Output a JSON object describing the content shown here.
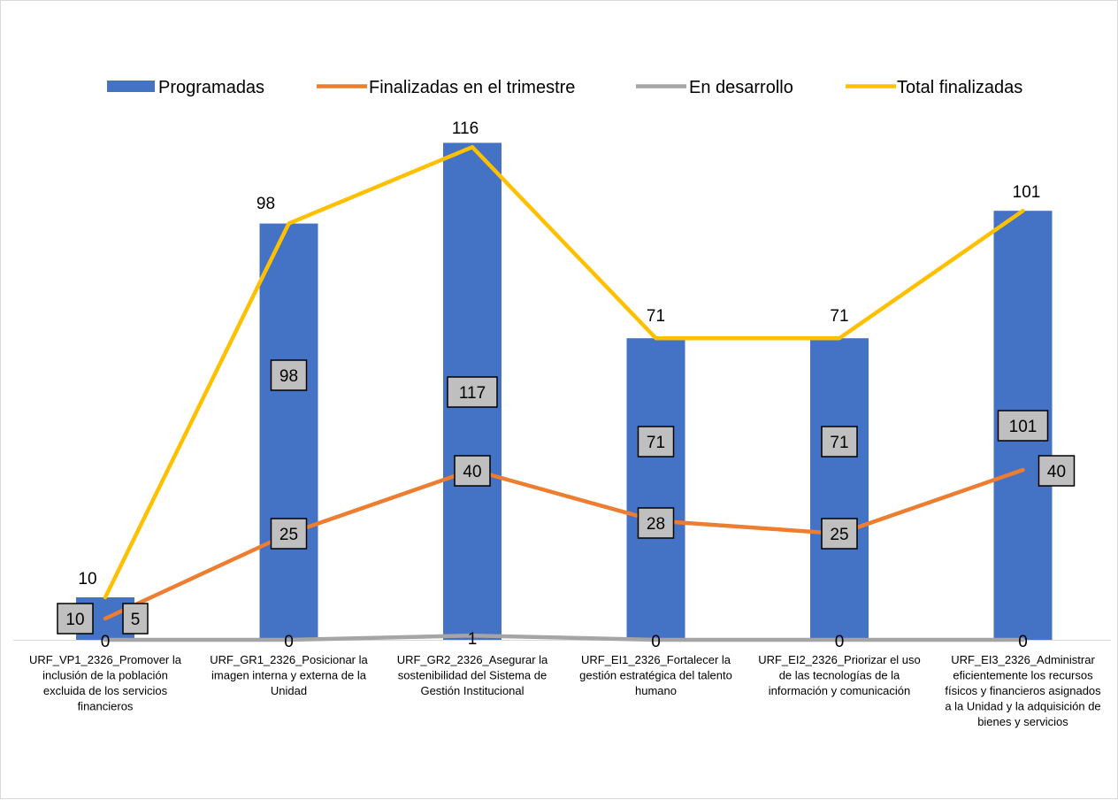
{
  "chart_data": {
    "type": "bar",
    "categories": [
      [
        "URF_VP1_2326_Promover la",
        "inclusión de la población",
        "excluida de los servicios",
        "financieros"
      ],
      [
        "URF_GR1_2326_Posicionar la",
        "imagen interna y externa de la",
        "Unidad"
      ],
      [
        "URF_GR2_2326_Asegurar la",
        "sostenibilidad del Sistema de",
        "Gestión Institucional"
      ],
      [
        "URF_EI1_2326_Fortalecer la",
        "gestión estratégica del talento",
        "humano"
      ],
      [
        "URF_EI2_2326_Priorizar el uso",
        "de las tecnologías de la",
        "información y comunicación"
      ],
      [
        "URF_EI3_2326_Administrar",
        "eficientemente los recursos",
        "físicos y  financieros asignados",
        "a la Unidad y la adquisición de",
        "bienes y servicios"
      ]
    ],
    "series": [
      {
        "name": "Programadas",
        "type": "bar",
        "color": "#4472C4",
        "values": [
          10,
          98,
          117,
          71,
          71,
          101
        ]
      },
      {
        "name": "Finalizadas en el trimestre",
        "type": "line",
        "color": "#ED7D31",
        "values": [
          5,
          25,
          40,
          28,
          25,
          40
        ]
      },
      {
        "name": "En desarrollo",
        "type": "line",
        "color": "#A5A5A5",
        "values": [
          0,
          0,
          1,
          0,
          0,
          0
        ]
      },
      {
        "name": "Total finalizadas",
        "type": "line",
        "color": "#FFC000",
        "values": [
          10,
          98,
          116,
          71,
          71,
          101
        ]
      }
    ],
    "ylim": [
      0,
      117
    ],
    "legend_position": "top",
    "grid": false
  }
}
